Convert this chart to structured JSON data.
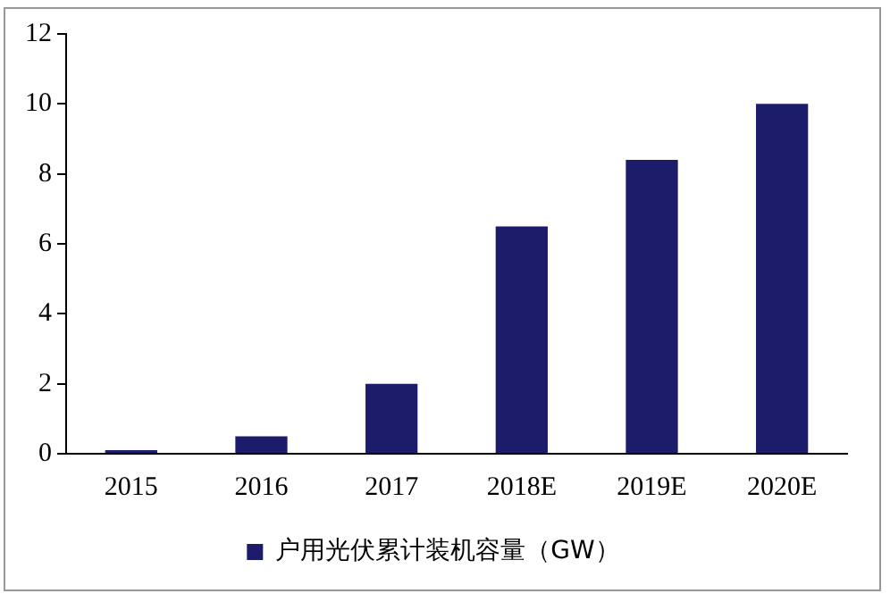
{
  "chart_data": {
    "type": "bar",
    "categories": [
      "2015",
      "2016",
      "2017",
      "2018E",
      "2019E",
      "2020E"
    ],
    "series": [
      {
        "name": "户用光伏累计装机容量（GW）",
        "color": "#1c1c6b",
        "values": [
          0.1,
          0.5,
          2.0,
          6.5,
          8.4,
          10.0
        ]
      }
    ],
    "ylim": [
      0,
      12
    ],
    "yticks": [
      0,
      2,
      4,
      6,
      8,
      10,
      12
    ],
    "grid": false,
    "legend": "bottom"
  }
}
